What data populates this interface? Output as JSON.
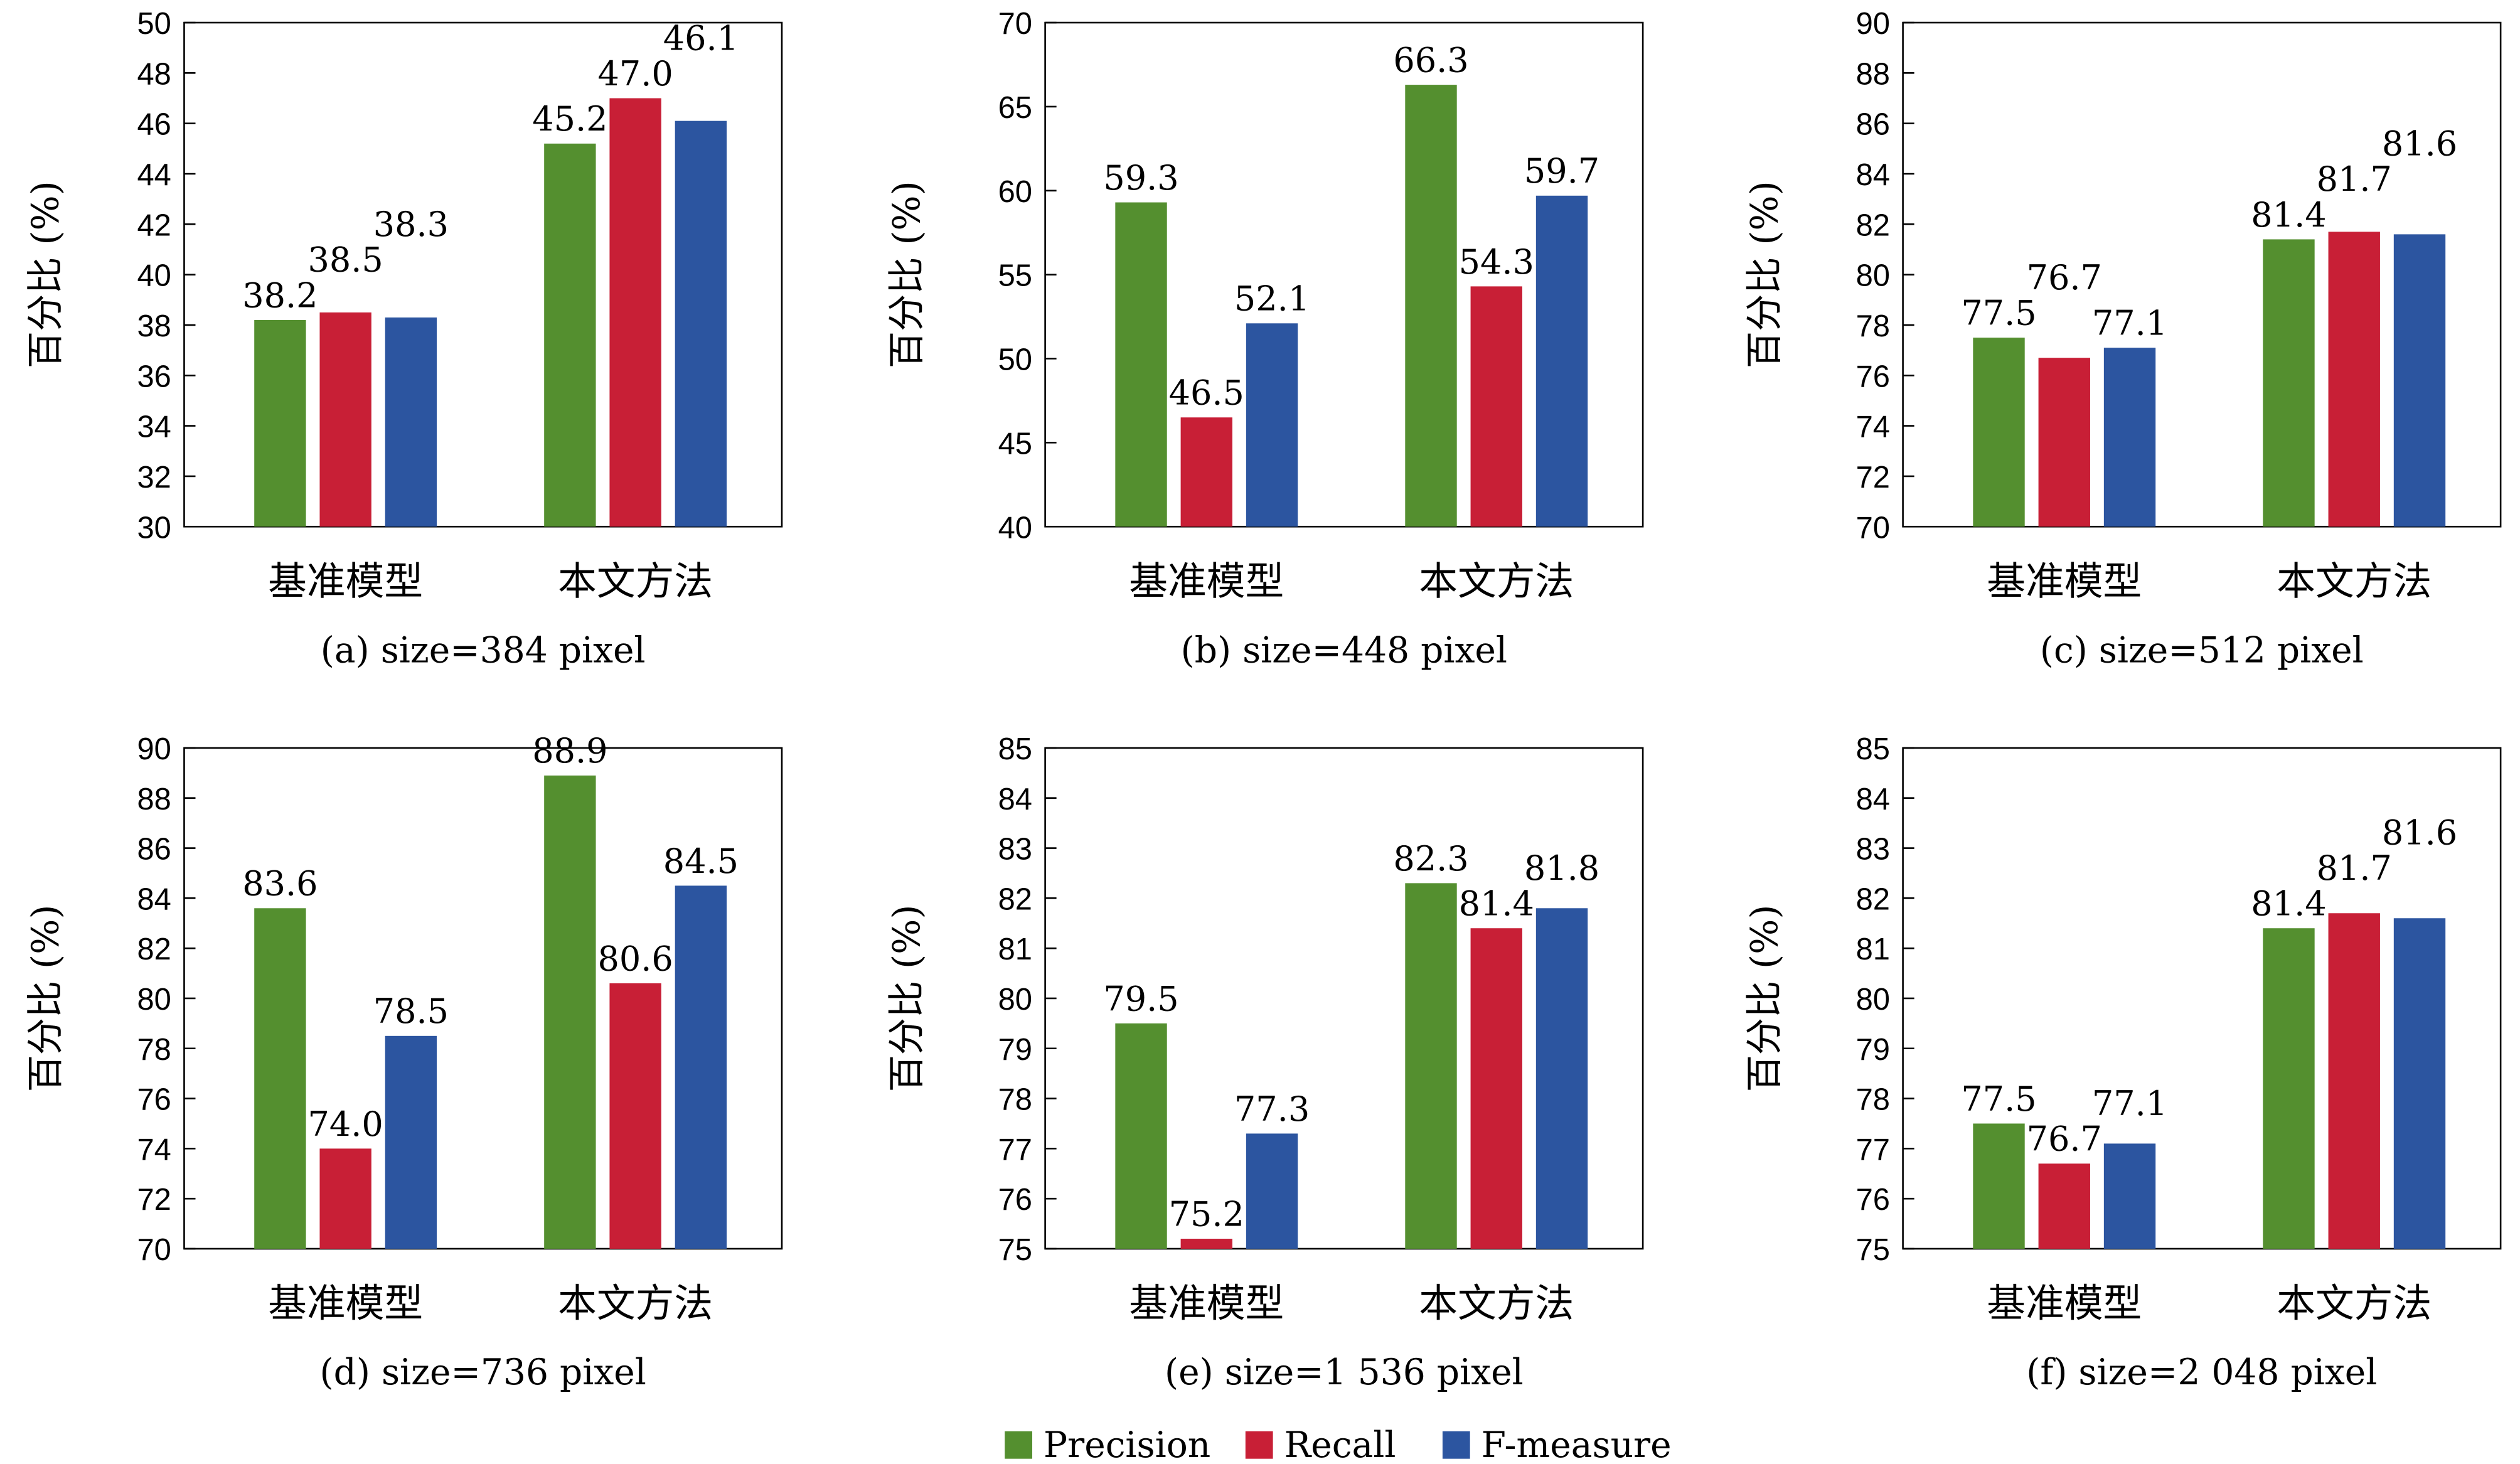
{
  "chart_data": [
    {
      "type": "bar",
      "caption": "(a) size=384 pixel",
      "ylabel": "百分比 (%)",
      "categories": [
        "基准模型",
        "本文方法"
      ],
      "ylim": [
        30,
        50
      ],
      "yticks": [
        30,
        32,
        34,
        36,
        38,
        40,
        42,
        44,
        46,
        48,
        50
      ],
      "series": [
        {
          "name": "Precision",
          "values": [
            38.2,
            45.2
          ]
        },
        {
          "name": "Recall",
          "values": [
            38.5,
            47.0
          ]
        },
        {
          "name": "F-measure",
          "values": [
            38.3,
            46.1
          ]
        }
      ]
    },
    {
      "type": "bar",
      "caption": "(b) size=448 pixel",
      "ylabel": "百分比 (%)",
      "categories": [
        "基准模型",
        "本文方法"
      ],
      "ylim": [
        40,
        70
      ],
      "yticks": [
        40,
        45,
        50,
        55,
        60,
        65,
        70
      ],
      "series": [
        {
          "name": "Precision",
          "values": [
            59.3,
            66.3
          ]
        },
        {
          "name": "Recall",
          "values": [
            46.5,
            54.3
          ]
        },
        {
          "name": "F-measure",
          "values": [
            52.1,
            59.7
          ]
        }
      ]
    },
    {
      "type": "bar",
      "caption": "(c) size=512 pixel",
      "ylabel": "百分比 (%)",
      "categories": [
        "基准模型",
        "本文方法"
      ],
      "ylim": [
        70,
        90
      ],
      "yticks": [
        70,
        72,
        74,
        76,
        78,
        80,
        82,
        84,
        86,
        88,
        90
      ],
      "series": [
        {
          "name": "Precision",
          "values": [
            77.5,
            81.4
          ]
        },
        {
          "name": "Recall",
          "values": [
            76.7,
            81.7
          ]
        },
        {
          "name": "F-measure",
          "values": [
            77.1,
            81.6
          ]
        }
      ]
    },
    {
      "type": "bar",
      "caption": "(d) size=736 pixel",
      "ylabel": "百分比 (%)",
      "categories": [
        "基准模型",
        "本文方法"
      ],
      "ylim": [
        70,
        90
      ],
      "yticks": [
        70,
        72,
        74,
        76,
        78,
        80,
        82,
        84,
        86,
        88,
        90
      ],
      "series": [
        {
          "name": "Precision",
          "values": [
            83.6,
            88.9
          ]
        },
        {
          "name": "Recall",
          "values": [
            74.0,
            80.6
          ]
        },
        {
          "name": "F-measure",
          "values": [
            78.5,
            84.5
          ]
        }
      ]
    },
    {
      "type": "bar",
      "caption": "(e) size=1 536 pixel",
      "ylabel": "百分比 (%)",
      "categories": [
        "基准模型",
        "本文方法"
      ],
      "ylim": [
        75,
        85
      ],
      "yticks": [
        75,
        76,
        77,
        78,
        79,
        80,
        81,
        82,
        83,
        84,
        85
      ],
      "series": [
        {
          "name": "Precision",
          "values": [
            79.5,
            82.3
          ]
        },
        {
          "name": "Recall",
          "values": [
            75.2,
            81.4
          ]
        },
        {
          "name": "F-measure",
          "values": [
            77.3,
            81.8
          ]
        }
      ]
    },
    {
      "type": "bar",
      "caption": "(f) size=2 048 pixel",
      "ylabel": "百分比 (%)",
      "categories": [
        "基准模型",
        "本文方法"
      ],
      "ylim": [
        75,
        85
      ],
      "yticks": [
        75,
        76,
        77,
        78,
        79,
        80,
        81,
        82,
        83,
        84,
        85
      ],
      "series": [
        {
          "name": "Precision",
          "values": [
            77.5,
            81.4
          ]
        },
        {
          "name": "Recall",
          "values": [
            76.7,
            81.7
          ]
        },
        {
          "name": "F-measure",
          "values": [
            77.1,
            81.6
          ]
        }
      ]
    }
  ],
  "legend": {
    "position": "bottom-center",
    "items": [
      {
        "label": "Precision",
        "color": "#548f2f"
      },
      {
        "label": "Recall",
        "color": "#c81f36"
      },
      {
        "label": "F-measure",
        "color": "#2c55a0"
      }
    ]
  },
  "data_labels": true,
  "grid": false
}
